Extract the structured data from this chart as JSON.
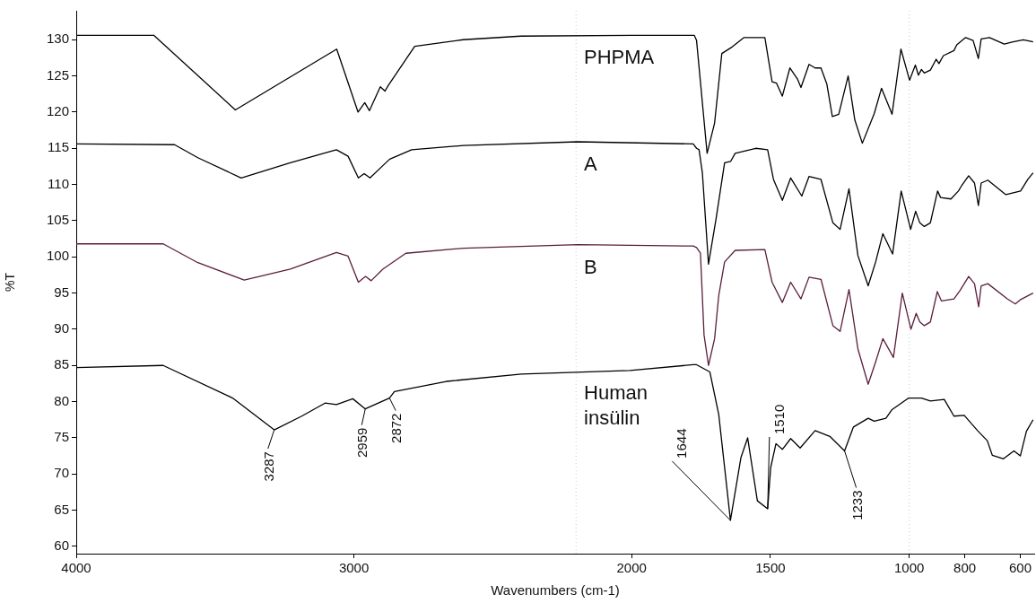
{
  "chart_data": {
    "type": "line",
    "xlabel": "Wavenumbers (cm-1)",
    "ylabel": "%T",
    "xlim": [
      4000,
      550
    ],
    "ylim": [
      59,
      134
    ],
    "xticks": [
      4000,
      3000,
      2000,
      1500,
      1000,
      800,
      600
    ],
    "yticks": [
      60,
      65,
      70,
      75,
      80,
      85,
      90,
      95,
      100,
      105,
      110,
      115,
      120,
      125,
      130
    ],
    "grid": false,
    "legend": false,
    "marker": "none",
    "line_style": "solid",
    "ref_lines": [
      {
        "axis": "x",
        "value": 2200,
        "color": "#c8c8c8",
        "line_style": "dotted"
      },
      {
        "axis": "x",
        "value": 1000,
        "color": "#c8c8c8",
        "line_style": "dotted"
      }
    ],
    "series": [
      {
        "name": "PHPMA",
        "color": "#000000",
        "x": [
          4000,
          3720,
          3427,
          3062,
          2985,
          2961,
          2944,
          2905,
          2888,
          2876,
          2781,
          2607,
          2399,
          2000,
          1774,
          1766,
          1728,
          1701,
          1675,
          1638,
          1595,
          1520,
          1494,
          1478,
          1457,
          1430,
          1403,
          1390,
          1361,
          1339,
          1318,
          1297,
          1277,
          1254,
          1220,
          1196,
          1169,
          1126,
          1100,
          1062,
          1030,
          999,
          978,
          967,
          956,
          946,
          924,
          903,
          893,
          877,
          839,
          829,
          797,
          770,
          751,
          741,
          711,
          658,
          626,
          589,
          554
        ],
        "values": [
          130.6,
          130.6,
          120.3,
          128.7,
          120.0,
          121.3,
          120.2,
          123.5,
          122.9,
          123.7,
          129.1,
          130.0,
          130.5,
          130.6,
          130.6,
          129.9,
          114.3,
          118.5,
          128.1,
          129.0,
          130.3,
          130.3,
          124.2,
          124.0,
          122.2,
          126.1,
          124.6,
          123.4,
          126.6,
          126.1,
          126.1,
          123.9,
          119.4,
          119.7,
          125.0,
          118.9,
          115.7,
          119.8,
          123.3,
          119.7,
          128.7,
          124.4,
          126.5,
          125.1,
          125.9,
          125.4,
          125.8,
          127.3,
          126.7,
          127.8,
          128.5,
          129.3,
          130.3,
          129.9,
          127.4,
          130.1,
          130.3,
          129.4,
          129.7,
          130.0,
          129.7
        ]
      },
      {
        "name": "A",
        "color": "#000000",
        "x": [
          4000,
          3646,
          3562,
          3406,
          3229,
          3063,
          3021,
          2984,
          2963,
          2942,
          2896,
          2871,
          2792,
          2605,
          2194,
          1778,
          1766,
          1757,
          1745,
          1723,
          1696,
          1665,
          1643,
          1627,
          1553,
          1510,
          1489,
          1457,
          1427,
          1387,
          1361,
          1318,
          1275,
          1249,
          1217,
          1185,
          1148,
          1121,
          1095,
          1060,
          1029,
          995,
          977,
          962,
          946,
          924,
          898,
          887,
          850,
          823,
          812,
          786,
          765,
          751,
          741,
          717,
          652,
          599,
          573,
          554
        ],
        "values": [
          115.6,
          115.5,
          113.7,
          110.9,
          113.0,
          114.8,
          113.9,
          110.9,
          111.5,
          110.9,
          112.6,
          113.5,
          114.8,
          115.4,
          115.9,
          115.6,
          115.0,
          114.8,
          111.6,
          99.0,
          105.2,
          113.0,
          113.2,
          114.3,
          115.0,
          114.8,
          110.7,
          107.8,
          110.9,
          108.4,
          111.1,
          110.7,
          104.7,
          103.8,
          109.4,
          100.2,
          96.0,
          99.3,
          103.2,
          100.4,
          109.1,
          103.8,
          106.3,
          104.7,
          104.2,
          104.7,
          109.1,
          108.2,
          108.0,
          109.1,
          109.8,
          111.2,
          110.2,
          107.1,
          110.2,
          110.6,
          108.6,
          109.1,
          110.7,
          111.6
        ]
      },
      {
        "name": "B",
        "color": "#5a1e3c",
        "x": [
          4000,
          3687,
          3562,
          3395,
          3229,
          3063,
          3021,
          2984,
          2958,
          2938,
          2896,
          2813,
          2605,
          2194,
          1778,
          1766,
          1752,
          1739,
          1723,
          1701,
          1686,
          1665,
          1627,
          1520,
          1494,
          1457,
          1427,
          1390,
          1361,
          1318,
          1275,
          1249,
          1217,
          1185,
          1148,
          1121,
          1095,
          1057,
          1025,
          994,
          975,
          962,
          946,
          924,
          899,
          884,
          839,
          818,
          786,
          765,
          750,
          741,
          717,
          647,
          618,
          599,
          554
        ],
        "values": [
          101.8,
          101.8,
          99.2,
          96.8,
          98.3,
          100.6,
          100.1,
          96.5,
          97.3,
          96.7,
          98.3,
          100.5,
          101.2,
          101.7,
          101.5,
          101.3,
          100.5,
          89.2,
          85.0,
          88.7,
          94.7,
          99.3,
          100.9,
          101.0,
          96.5,
          93.7,
          96.5,
          94.2,
          97.2,
          96.9,
          90.5,
          89.7,
          95.5,
          87.3,
          82.4,
          85.5,
          88.7,
          86.1,
          95.0,
          90.0,
          92.2,
          91.0,
          90.5,
          91.0,
          95.2,
          93.9,
          94.2,
          95.3,
          97.3,
          96.3,
          93.1,
          96.0,
          96.3,
          94.2,
          93.5,
          94.1,
          95.0
        ]
      },
      {
        "name": "Human\ninsülin",
        "color": "#000000",
        "x": [
          4000,
          3687,
          3437,
          3287,
          3188,
          3104,
          3063,
          3004,
          2959,
          2872,
          2854,
          2667,
          2397,
          2006,
          1778,
          1766,
          1718,
          1686,
          1644,
          1606,
          1582,
          1547,
          1510,
          1499,
          1480,
          1457,
          1427,
          1393,
          1339,
          1286,
          1233,
          1201,
          1148,
          1126,
          1084,
          1062,
          1002,
          956,
          924,
          874,
          839,
          802,
          754,
          719,
          701,
          661,
          623,
          600,
          578,
          554
        ],
        "values": [
          84.7,
          85.0,
          80.5,
          76.1,
          78.0,
          79.8,
          79.6,
          80.4,
          79.0,
          80.5,
          81.4,
          82.8,
          83.8,
          84.3,
          85.1,
          85.1,
          84.1,
          78.2,
          63.6,
          72.3,
          75.0,
          66.3,
          65.2,
          70.9,
          74.2,
          73.4,
          74.9,
          73.6,
          76.0,
          75.2,
          73.2,
          76.5,
          77.7,
          77.3,
          77.7,
          78.9,
          80.5,
          80.5,
          80.1,
          80.3,
          78.0,
          78.1,
          76.0,
          74.6,
          72.6,
          72.1,
          73.2,
          72.5,
          75.9,
          77.5
        ]
      }
    ],
    "annotations": [
      {
        "text": "3287",
        "x": 3287,
        "y": 76.1
      },
      {
        "text": "2959",
        "x": 2959,
        "y": 79.0
      },
      {
        "text": "2872",
        "x": 2872,
        "y": 80.5
      },
      {
        "text": "1644",
        "x": 1644,
        "y": 63.6
      },
      {
        "text": "1510",
        "x": 1510,
        "y": 65.2
      },
      {
        "text": "1233",
        "x": 1233,
        "y": 73.2
      }
    ]
  }
}
